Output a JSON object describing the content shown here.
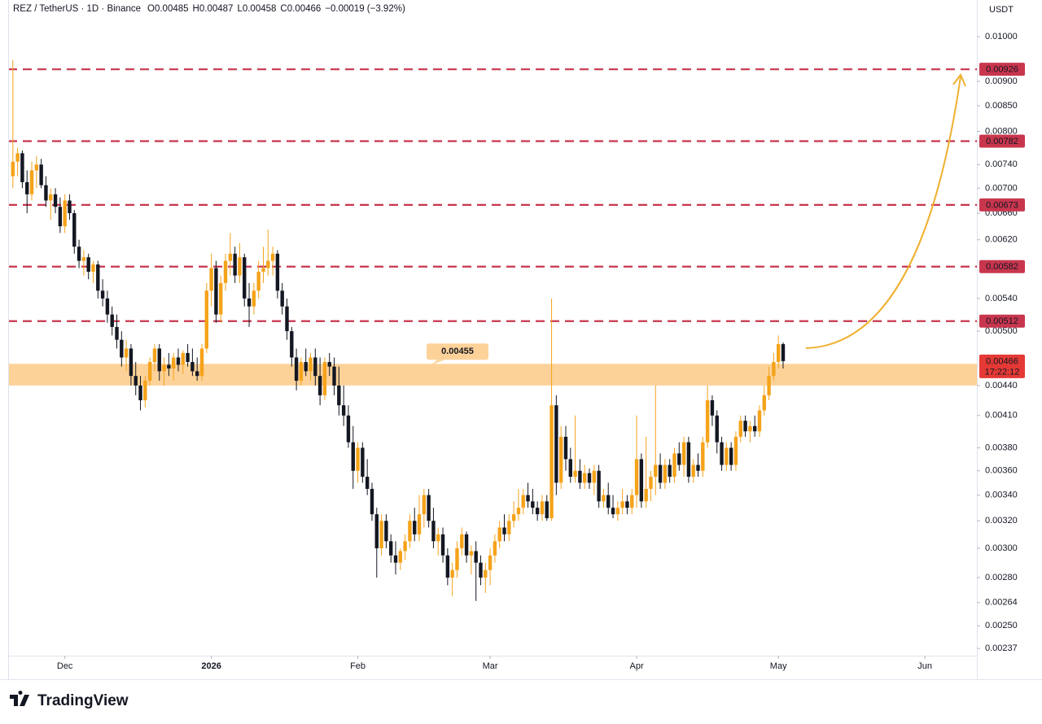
{
  "chart_data": {
    "type": "candlestick",
    "title": "REZ / TetherUS · 1D · Binance",
    "header_keys": [
      "O",
      "H",
      "L",
      "C"
    ],
    "header_values": [
      0.00485,
      0.00487,
      0.00458,
      0.00466
    ],
    "header_change": "−0.00019 (−3.92%)",
    "y_axis_label": "USDT",
    "brand": "TradingView",
    "yscale": "log",
    "grid": false,
    "up_color": "#f5a31a",
    "down_color": "#131722",
    "level_color": "#c8364e",
    "zone_color": "#fdd299",
    "ylim": [
      0.00233,
      0.0109
    ],
    "xlim": [
      -1,
      204
    ],
    "yticks": [
      {
        "value": 0.01,
        "label": "0.01000"
      },
      {
        "value": 0.009,
        "label": "0.00900"
      },
      {
        "value": 0.0085,
        "label": "0.00850"
      },
      {
        "value": 0.008,
        "label": "0.00800"
      },
      {
        "value": 0.0074,
        "label": "0.00740"
      },
      {
        "value": 0.007,
        "label": "0.00700"
      },
      {
        "value": 0.0066,
        "label": "0.00660"
      },
      {
        "value": 0.0062,
        "label": "0.00620"
      },
      {
        "value": 0.0054,
        "label": "0.00540"
      },
      {
        "value": 0.005,
        "label": "0.00500"
      },
      {
        "value": 0.0044,
        "label": "0.00440"
      },
      {
        "value": 0.0041,
        "label": "0.00410"
      },
      {
        "value": 0.0038,
        "label": "0.00380"
      },
      {
        "value": 0.0036,
        "label": "0.00360"
      },
      {
        "value": 0.0034,
        "label": "0.00340"
      },
      {
        "value": 0.0032,
        "label": "0.00320"
      },
      {
        "value": 0.003,
        "label": "0.00300"
      },
      {
        "value": 0.0028,
        "label": "0.00280"
      },
      0.00264,
      {
        "value": 0.0025,
        "label": "0.00250"
      },
      0.00237
    ],
    "xticks": [
      {
        "value": 11,
        "label": "Dec"
      },
      {
        "value": 42,
        "label": "2026"
      },
      {
        "value": 73,
        "label": "Feb"
      },
      {
        "value": 101,
        "label": "Mar"
      },
      {
        "value": 132,
        "label": "Apr"
      },
      {
        "value": 162,
        "label": "May"
      },
      {
        "value": 193,
        "label": "Jun"
      }
    ],
    "levels": [
      0.00926,
      0.00782,
      0.00673,
      0.00582,
      0.00512
    ],
    "zone": {
      "low": 0.0044,
      "high": 0.00463,
      "value": 0.00455
    },
    "current_price": 0.00466,
    "countdown": "17:22:12",
    "ohlc": [
      [
        0.0072,
        0.00946,
        0.007,
        0.00745
      ],
      [
        0.00745,
        0.0077,
        0.0072,
        0.0076
      ],
      [
        0.0076,
        0.00765,
        0.007,
        0.0071
      ],
      [
        0.0071,
        0.0073,
        0.0066,
        0.0069
      ],
      [
        0.0069,
        0.00745,
        0.0068,
        0.0073
      ],
      [
        0.0073,
        0.00755,
        0.007,
        0.0074
      ],
      [
        0.0074,
        0.0075,
        0.007,
        0.00705
      ],
      [
        0.00705,
        0.0072,
        0.0067,
        0.0068
      ],
      [
        0.0068,
        0.007,
        0.0065,
        0.0069
      ],
      [
        0.0069,
        0.007,
        0.0066,
        0.0067
      ],
      [
        0.0067,
        0.00685,
        0.0063,
        0.0064
      ],
      [
        0.0064,
        0.0069,
        0.0063,
        0.0068
      ],
      [
        0.0068,
        0.0069,
        0.0065,
        0.0066
      ],
      [
        0.0066,
        0.00665,
        0.006,
        0.0061
      ],
      [
        0.0061,
        0.0062,
        0.0058,
        0.0059
      ],
      [
        0.0059,
        0.00605,
        0.0057,
        0.00595
      ],
      [
        0.00595,
        0.006,
        0.00565,
        0.00575
      ],
      [
        0.00575,
        0.0059,
        0.0056,
        0.00585
      ],
      [
        0.00585,
        0.0059,
        0.0054,
        0.0055
      ],
      [
        0.0055,
        0.00565,
        0.0053,
        0.0054
      ],
      [
        0.0054,
        0.0055,
        0.0051,
        0.0052
      ],
      [
        0.0052,
        0.0053,
        0.00495,
        0.00505
      ],
      [
        0.00505,
        0.0052,
        0.0048,
        0.0049
      ],
      [
        0.0049,
        0.005,
        0.0046,
        0.0047
      ],
      [
        0.0047,
        0.0049,
        0.00455,
        0.0048
      ],
      [
        0.0048,
        0.00485,
        0.0044,
        0.0045
      ],
      [
        0.0045,
        0.00465,
        0.0043,
        0.0044
      ],
      [
        0.0044,
        0.0045,
        0.00415,
        0.00425
      ],
      [
        0.00425,
        0.0045,
        0.00418,
        0.00445
      ],
      [
        0.00445,
        0.0047,
        0.0044,
        0.00465
      ],
      [
        0.00465,
        0.00485,
        0.00455,
        0.0048
      ],
      [
        0.0048,
        0.00485,
        0.00445,
        0.00455
      ],
      [
        0.00455,
        0.0047,
        0.0044,
        0.00462
      ],
      [
        0.00462,
        0.00475,
        0.0045,
        0.00458
      ],
      [
        0.00458,
        0.00475,
        0.00445,
        0.0047
      ],
      [
        0.0047,
        0.0048,
        0.00455,
        0.00462
      ],
      [
        0.00462,
        0.00478,
        0.00452,
        0.00475
      ],
      [
        0.00475,
        0.00485,
        0.0046,
        0.00465
      ],
      [
        0.00465,
        0.0048,
        0.0045,
        0.00455
      ],
      [
        0.00455,
        0.0047,
        0.00445,
        0.0045
      ],
      [
        0.0045,
        0.00485,
        0.00445,
        0.0048
      ],
      [
        0.0048,
        0.0056,
        0.00475,
        0.0055
      ],
      [
        0.0055,
        0.006,
        0.0053,
        0.0058
      ],
      [
        0.0058,
        0.0059,
        0.0051,
        0.0052
      ],
      [
        0.0052,
        0.0057,
        0.0051,
        0.0056
      ],
      [
        0.0056,
        0.006,
        0.0055,
        0.0059
      ],
      [
        0.0059,
        0.0063,
        0.0057,
        0.006
      ],
      [
        0.006,
        0.0061,
        0.0056,
        0.0057
      ],
      [
        0.0057,
        0.00615,
        0.0056,
        0.00595
      ],
      [
        0.00595,
        0.006,
        0.0053,
        0.0054
      ],
      [
        0.0054,
        0.0056,
        0.00505,
        0.0053
      ],
      [
        0.0053,
        0.0056,
        0.0052,
        0.0055
      ],
      [
        0.0055,
        0.0059,
        0.0054,
        0.00575
      ],
      [
        0.00575,
        0.0061,
        0.0056,
        0.0058
      ],
      [
        0.0058,
        0.00635,
        0.0057,
        0.0059
      ],
      [
        0.0059,
        0.0061,
        0.0057,
        0.006
      ],
      [
        0.006,
        0.00605,
        0.0054,
        0.0055
      ],
      [
        0.0055,
        0.0056,
        0.0052,
        0.0053
      ],
      [
        0.0053,
        0.0054,
        0.0049,
        0.005
      ],
      [
        0.005,
        0.00505,
        0.0046,
        0.0047
      ],
      [
        0.0047,
        0.0048,
        0.00435,
        0.00445
      ],
      [
        0.00445,
        0.0047,
        0.0044,
        0.00465
      ],
      [
        0.00465,
        0.0048,
        0.0045,
        0.00455
      ],
      [
        0.00455,
        0.00475,
        0.00445,
        0.0047
      ],
      [
        0.0047,
        0.0048,
        0.0044,
        0.0045
      ],
      [
        0.0045,
        0.0047,
        0.0042,
        0.0043
      ],
      [
        0.0043,
        0.0047,
        0.00425,
        0.00465
      ],
      [
        0.00465,
        0.00475,
        0.0045,
        0.0046
      ],
      [
        0.0046,
        0.0047,
        0.0043,
        0.0044
      ],
      [
        0.0044,
        0.0046,
        0.0041,
        0.0042
      ],
      [
        0.0042,
        0.0044,
        0.004,
        0.0041
      ],
      [
        0.0041,
        0.0042,
        0.0038,
        0.00385
      ],
      [
        0.00385,
        0.004,
        0.00345,
        0.0036
      ],
      [
        0.0036,
        0.00385,
        0.0035,
        0.0038
      ],
      [
        0.0038,
        0.00385,
        0.0035,
        0.00355
      ],
      [
        0.00355,
        0.0037,
        0.0034,
        0.00345
      ],
      [
        0.00345,
        0.0035,
        0.0032,
        0.00325
      ],
      [
        0.00325,
        0.0033,
        0.0028,
        0.003
      ],
      [
        0.003,
        0.00325,
        0.00295,
        0.0032
      ],
      [
        0.0032,
        0.00325,
        0.003,
        0.00305
      ],
      [
        0.00305,
        0.0031,
        0.0029,
        0.00295
      ],
      [
        0.00295,
        0.00305,
        0.00282,
        0.0029
      ],
      [
        0.0029,
        0.003,
        0.00285,
        0.00298
      ],
      [
        0.00298,
        0.0031,
        0.00292,
        0.00305
      ],
      [
        0.00305,
        0.00325,
        0.003,
        0.0032
      ],
      [
        0.0032,
        0.0033,
        0.00305,
        0.0031
      ],
      [
        0.0031,
        0.0034,
        0.00305,
        0.00325
      ],
      [
        0.00325,
        0.00345,
        0.00315,
        0.0034
      ],
      [
        0.0034,
        0.00345,
        0.00315,
        0.0032
      ],
      [
        0.0032,
        0.0033,
        0.003,
        0.00305
      ],
      [
        0.00305,
        0.00315,
        0.00295,
        0.0031
      ],
      [
        0.0031,
        0.00315,
        0.0029,
        0.00295
      ],
      [
        0.00295,
        0.003,
        0.00275,
        0.0028
      ],
      [
        0.0028,
        0.0029,
        0.00268,
        0.00285
      ],
      [
        0.00285,
        0.00305,
        0.0028,
        0.003
      ],
      [
        0.003,
        0.00315,
        0.00295,
        0.0031
      ],
      [
        0.0031,
        0.00312,
        0.0029,
        0.00295
      ],
      [
        0.00295,
        0.00302,
        0.00282,
        0.00298
      ],
      [
        0.00298,
        0.00305,
        0.00265,
        0.0029
      ],
      [
        0.0029,
        0.00295,
        0.00275,
        0.0028
      ],
      [
        0.0028,
        0.0029,
        0.0027,
        0.00285
      ],
      [
        0.00285,
        0.003,
        0.00275,
        0.00295
      ],
      [
        0.00295,
        0.0031,
        0.0029,
        0.00305
      ],
      [
        0.00305,
        0.0032,
        0.003,
        0.00315
      ],
      [
        0.00315,
        0.00325,
        0.00305,
        0.0031
      ],
      [
        0.0031,
        0.00325,
        0.00305,
        0.0032
      ],
      [
        0.0032,
        0.00335,
        0.00315,
        0.00325
      ],
      [
        0.00325,
        0.00345,
        0.0032,
        0.0033
      ],
      [
        0.0033,
        0.00345,
        0.00325,
        0.0034
      ],
      [
        0.0034,
        0.0035,
        0.0033,
        0.00335
      ],
      [
        0.00335,
        0.00345,
        0.00325,
        0.0033
      ],
      [
        0.0033,
        0.00335,
        0.0032,
        0.00325
      ],
      [
        0.00325,
        0.0034,
        0.0032,
        0.00335
      ],
      [
        0.00335,
        0.0034,
        0.0032,
        0.00322
      ],
      [
        0.00322,
        0.0054,
        0.0032,
        0.0042
      ],
      [
        0.0042,
        0.0043,
        0.0034,
        0.0035
      ],
      [
        0.0035,
        0.004,
        0.00345,
        0.0039
      ],
      [
        0.0039,
        0.004,
        0.0036,
        0.0037
      ],
      [
        0.0037,
        0.0038,
        0.0035,
        0.00355
      ],
      [
        0.00355,
        0.0041,
        0.0035,
        0.0036
      ],
      [
        0.0036,
        0.0037,
        0.00345,
        0.0035
      ],
      [
        0.0035,
        0.00365,
        0.00345,
        0.00358
      ],
      [
        0.00358,
        0.00362,
        0.00345,
        0.0035
      ],
      [
        0.0035,
        0.00365,
        0.0034,
        0.0036
      ],
      [
        0.0036,
        0.00365,
        0.0033,
        0.00335
      ],
      [
        0.00335,
        0.00345,
        0.0033,
        0.0034
      ],
      [
        0.0034,
        0.0035,
        0.00325,
        0.0033
      ],
      [
        0.0033,
        0.0034,
        0.00322,
        0.00325
      ],
      [
        0.00325,
        0.00335,
        0.0032,
        0.0033
      ],
      [
        0.0033,
        0.00345,
        0.00325,
        0.00335
      ],
      [
        0.00335,
        0.0034,
        0.00325,
        0.0033
      ],
      [
        0.0033,
        0.00345,
        0.00325,
        0.0034
      ],
      [
        0.0034,
        0.0041,
        0.0033,
        0.0037
      ],
      [
        0.0037,
        0.00375,
        0.0033,
        0.00335
      ],
      [
        0.00335,
        0.0039,
        0.0033,
        0.00345
      ],
      [
        0.00345,
        0.0036,
        0.00335,
        0.00355
      ],
      [
        0.00355,
        0.0044,
        0.0034,
        0.00365
      ],
      [
        0.00365,
        0.00375,
        0.00345,
        0.0035
      ],
      [
        0.0035,
        0.0037,
        0.00345,
        0.00365
      ],
      [
        0.00365,
        0.0037,
        0.0035,
        0.00355
      ],
      [
        0.00355,
        0.0038,
        0.0035,
        0.00375
      ],
      [
        0.00375,
        0.00385,
        0.0036,
        0.00365
      ],
      [
        0.00365,
        0.0039,
        0.00355,
        0.00385
      ],
      [
        0.00385,
        0.0039,
        0.0035,
        0.00355
      ],
      [
        0.00355,
        0.0037,
        0.0035,
        0.00365
      ],
      [
        0.00365,
        0.00375,
        0.00355,
        0.0036
      ],
      [
        0.0036,
        0.0039,
        0.00355,
        0.00385
      ],
      [
        0.00385,
        0.0044,
        0.0038,
        0.00425
      ],
      [
        0.00425,
        0.0043,
        0.004,
        0.0041
      ],
      [
        0.0041,
        0.00415,
        0.00375,
        0.00385
      ],
      [
        0.00385,
        0.0039,
        0.0036,
        0.00365
      ],
      [
        0.00365,
        0.00385,
        0.0036,
        0.0038
      ],
      [
        0.0038,
        0.00385,
        0.0036,
        0.00365
      ],
      [
        0.00365,
        0.00395,
        0.0036,
        0.0039
      ],
      [
        0.0039,
        0.0041,
        0.00385,
        0.00405
      ],
      [
        0.00405,
        0.0041,
        0.0039,
        0.00395
      ],
      [
        0.00395,
        0.00405,
        0.00385,
        0.004
      ],
      [
        0.004,
        0.0041,
        0.0039,
        0.00395
      ],
      [
        0.00395,
        0.0042,
        0.0039,
        0.00415
      ],
      [
        0.00415,
        0.0044,
        0.0041,
        0.0043
      ],
      [
        0.0043,
        0.0046,
        0.00425,
        0.0045
      ],
      [
        0.0045,
        0.00475,
        0.00445,
        0.00465
      ],
      [
        0.00465,
        0.00495,
        0.00458,
        0.00485
      ],
      [
        0.00485,
        0.00487,
        0.00458,
        0.00466
      ]
    ]
  }
}
